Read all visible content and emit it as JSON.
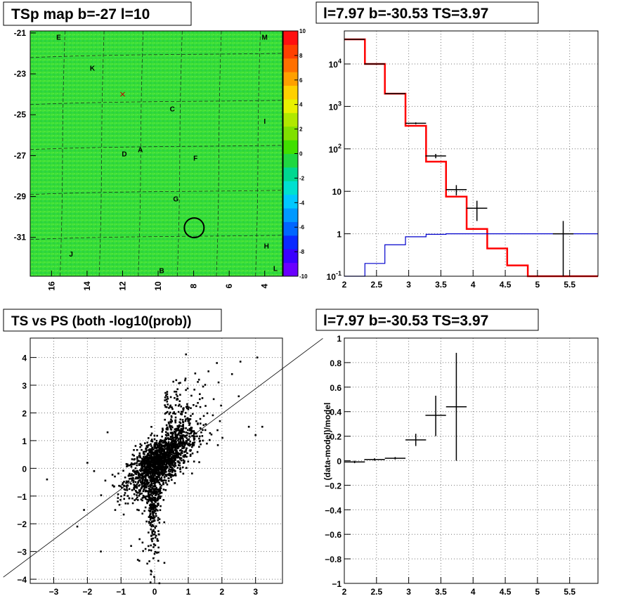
{
  "chart_data": [
    {
      "type": "heatmap",
      "title": "TSp map b=-27 l=10",
      "x_ticks": [
        "16",
        "14",
        "12",
        "10",
        "8",
        "6",
        "4"
      ],
      "y_ticks": [
        "-21",
        "-23",
        "-25",
        "-27",
        "-29",
        "-31"
      ],
      "colorbar_ticks": [
        "10",
        "8",
        "6",
        "4",
        "2",
        "0",
        "-2",
        "-4",
        "-6",
        "-8",
        "-10"
      ],
      "colorbar_colors": [
        "#6a00ff",
        "#3a00ff",
        "#0a2aff",
        "#0066ff",
        "#0099ff",
        "#00c8ff",
        "#00e0d0",
        "#00d890",
        "#20d840",
        "#40e000",
        "#80e000",
        "#b0e800",
        "#e8f000",
        "#ffd000",
        "#ffa000",
        "#ff7000",
        "#ff4000",
        "#ff1010"
      ],
      "background_color": "#33dd33",
      "sources": [
        {
          "label": "E",
          "l": 15.6,
          "b": -21.2
        },
        {
          "label": "M",
          "l": 4.0,
          "b": -21.2
        },
        {
          "label": "K",
          "l": 13.7,
          "b": -22.7
        },
        {
          "label": "C",
          "l": 9.2,
          "b": -24.7
        },
        {
          "label": "I",
          "l": 4.0,
          "b": -25.3
        },
        {
          "label": "D",
          "l": 11.9,
          "b": -26.9
        },
        {
          "label": "A",
          "l": 11.0,
          "b": -26.7
        },
        {
          "label": "F",
          "l": 7.9,
          "b": -27.1
        },
        {
          "label": "G",
          "l": 9.0,
          "b": -29.1
        },
        {
          "label": "H",
          "l": 3.9,
          "b": -31.4
        },
        {
          "label": "J",
          "l": 14.9,
          "b": -31.8
        },
        {
          "label": "B",
          "l": 9.8,
          "b": -32.6
        },
        {
          "label": "L",
          "l": 3.4,
          "b": -32.5
        }
      ],
      "circle": {
        "l": 7.97,
        "b": -30.53
      },
      "cross": {
        "l": 12.0,
        "b": -24.0
      }
    },
    {
      "type": "line",
      "title": "l=7.97 b=-30.53 TS=3.97",
      "xlim": [
        2,
        5.94
      ],
      "ylim": [
        0.1,
        60000
      ],
      "yscale": "log",
      "x_ticks": [
        "2",
        "2.5",
        "3",
        "3.5",
        "4",
        "4.5",
        "5",
        "5.5"
      ],
      "y_ticks": [
        "10^-1",
        "1",
        "10",
        "10^2",
        "10^3",
        "10^4"
      ],
      "series": [
        {
          "color": "#ff0000",
          "edges": [
            2.0,
            2.32,
            2.63,
            2.95,
            3.27,
            3.58,
            3.9,
            4.22,
            4.53,
            4.85,
            5.94
          ],
          "values": [
            38000,
            10000,
            2000,
            350,
            50,
            7.5,
            1.3,
            0.45,
            0.18,
            0.1
          ]
        },
        {
          "color": "#0000cc",
          "edges": [
            2.0,
            2.32,
            2.63,
            2.95,
            3.27,
            3.58,
            3.9,
            4.22,
            4.53,
            4.85,
            5.94
          ],
          "values": [
            0.1,
            0.2,
            0.55,
            0.85,
            0.97,
            1.0,
            1.0,
            1.0,
            1.0,
            1.0
          ]
        }
      ],
      "points": [
        {
          "x": 2.16,
          "y": 38000,
          "xerr": 0.16,
          "ylo": 38000,
          "yhi": 38000
        },
        {
          "x": 2.47,
          "y": 10000,
          "xerr": 0.16,
          "ylo": 10000,
          "yhi": 10000
        },
        {
          "x": 2.79,
          "y": 2000,
          "xerr": 0.16,
          "ylo": 2000,
          "yhi": 2000
        },
        {
          "x": 3.11,
          "y": 400,
          "xerr": 0.16,
          "ylo": 380,
          "yhi": 420
        },
        {
          "x": 3.42,
          "y": 68,
          "xerr": 0.16,
          "ylo": 60,
          "yhi": 76
        },
        {
          "x": 3.74,
          "y": 11,
          "xerr": 0.16,
          "ylo": 8,
          "yhi": 14
        },
        {
          "x": 4.06,
          "y": 4,
          "xerr": 0.16,
          "ylo": 2,
          "yhi": 6
        },
        {
          "x": 5.4,
          "y": 1,
          "xerr": 0.16,
          "ylo": 0.1,
          "yhi": 2
        }
      ]
    },
    {
      "type": "scatter",
      "title": "TS vs PS (both -log10(prob))",
      "xlim": [
        -3.7,
        3.8
      ],
      "ylim": [
        -4.15,
        4.7
      ],
      "x_ticks": [
        "-3",
        "-2",
        "-1",
        "0",
        "1",
        "2",
        "3"
      ],
      "y_ticks": [
        "4",
        "3",
        "2",
        "1",
        "0",
        "-1",
        "-2",
        "-3",
        "-4"
      ],
      "diagonal": [
        [
          -3.7,
          -3.2
        ],
        [
          3.8,
          3.6
        ]
      ],
      "outliers": [
        [
          3.05,
          4.0
        ],
        [
          2.55,
          3.85
        ],
        [
          1.85,
          3.8
        ],
        [
          2.3,
          3.4
        ],
        [
          3.2,
          1.5
        ],
        [
          -1.6,
          -3.0
        ],
        [
          -3.2,
          -0.4
        ],
        [
          -0.5,
          -3.3
        ],
        [
          -2.1,
          -1.5
        ],
        [
          -1.4,
          1.3
        ],
        [
          1.6,
          3.5
        ],
        [
          1.9,
          3.1
        ],
        [
          -2.0,
          0.2
        ],
        [
          2.8,
          1.5
        ],
        [
          -2.3,
          -2.1
        ],
        [
          -1.8,
          -0.1
        ],
        [
          2.5,
          2.6
        ],
        [
          -0.7,
          -2.8
        ],
        [
          3.0,
          1.2
        ]
      ],
      "cloud": {
        "center": [
          0.1,
          0.2
        ],
        "spread": [
          0.45,
          0.55
        ],
        "count": 1500,
        "tail_count": 260
      },
      "marker_color": "#000000"
    },
    {
      "type": "scatter",
      "title": "l=7.97 b=-30.53 TS=3.97",
      "ylabel": "(data-model)/model",
      "xlim": [
        2,
        5.94
      ],
      "ylim": [
        -1,
        1
      ],
      "x_ticks": [
        "2",
        "2.5",
        "3",
        "3.5",
        "4",
        "4.5",
        "5",
        "5.5"
      ],
      "y_ticks": [
        "1",
        "0.8",
        "0.6",
        "0.4",
        "0.2",
        "0",
        "-0.2",
        "-0.4",
        "-0.6",
        "-0.8",
        "-1"
      ],
      "points": [
        {
          "x": 2.16,
          "y": -0.01,
          "xerr": 0.16,
          "ylo": -0.02,
          "yhi": 0.0
        },
        {
          "x": 2.47,
          "y": 0.01,
          "xerr": 0.16,
          "ylo": 0.0,
          "yhi": 0.02
        },
        {
          "x": 2.79,
          "y": 0.02,
          "xerr": 0.16,
          "ylo": 0.01,
          "yhi": 0.03
        },
        {
          "x": 3.11,
          "y": 0.17,
          "xerr": 0.16,
          "ylo": 0.12,
          "yhi": 0.22
        },
        {
          "x": 3.42,
          "y": 0.37,
          "xerr": 0.16,
          "ylo": 0.2,
          "yhi": 0.53
        },
        {
          "x": 3.74,
          "y": 0.44,
          "xerr": 0.16,
          "ylo": 0.0,
          "yhi": 0.88
        }
      ]
    }
  ]
}
